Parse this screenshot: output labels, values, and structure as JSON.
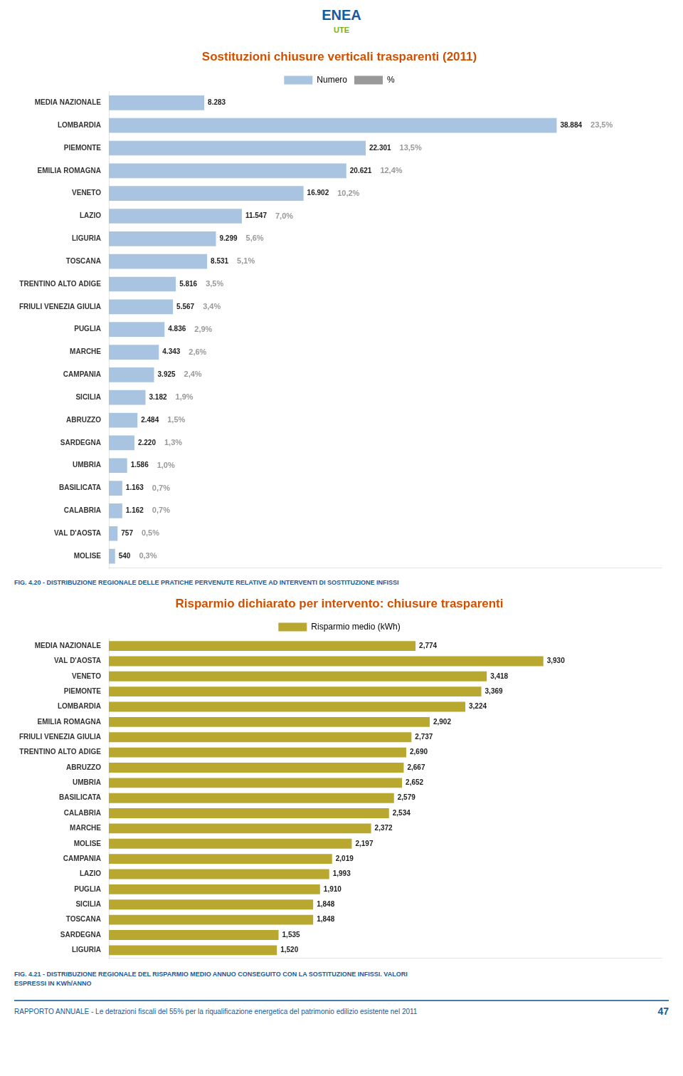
{
  "chart_data": [
    {
      "type": "bar",
      "orientation": "horizontal",
      "title": "Sostituzioni chiusure verticali trasparenti (2011)",
      "categories": [
        "MEDIA NAZIONALE",
        "LOMBARDIA",
        "PIEMONTE",
        "EMILIA ROMAGNA",
        "VENETO",
        "LAZIO",
        "LIGURIA",
        "TOSCANA",
        "TRENTINO ALTO ADIGE",
        "FRIULI VENEZIA GIULIA",
        "PUGLIA",
        "MARCHE",
        "CAMPANIA",
        "SICILIA",
        "ABRUZZO",
        "SARDEGNA",
        "UMBRIA",
        "BASILICATA",
        "CALABRIA",
        "VAL D'AOSTA",
        "MOLISE"
      ],
      "series": [
        {
          "name": "Numero",
          "color": "#a8c4e0",
          "values": [
            8283,
            38884,
            22301,
            20621,
            16902,
            11547,
            9299,
            8531,
            5816,
            5567,
            4836,
            4343,
            3925,
            3182,
            2484,
            2220,
            1586,
            1163,
            1162,
            757,
            540
          ],
          "value_labels": [
            "8.283",
            "38.884",
            "22.301",
            "20.621",
            "16.902",
            "11.547",
            "9.299",
            "8.531",
            "5.816",
            "5.567",
            "4.836",
            "4.343",
            "3.925",
            "3.182",
            "2.484",
            "2.220",
            "1.586",
            "1.163",
            "1.162",
            "757",
            "540"
          ]
        },
        {
          "name": "%",
          "type": "label",
          "color": "#999999",
          "values": [
            null,
            23.5,
            13.5,
            12.4,
            10.2,
            7.0,
            5.6,
            5.1,
            3.5,
            3.4,
            2.9,
            2.6,
            2.4,
            1.9,
            1.5,
            1.3,
            1.0,
            0.7,
            0.7,
            0.5,
            0.3
          ],
          "value_labels": [
            null,
            "23,5%",
            "13,5%",
            "12,4%",
            "10,2%",
            "7,0%",
            "5,6%",
            "5,1%",
            "3,5%",
            "3,4%",
            "2,9%",
            "2,6%",
            "2,4%",
            "1,9%",
            "1,5%",
            "1,3%",
            "1,0%",
            "0,7%",
            "0,7%",
            "0,5%",
            "0,3%"
          ]
        }
      ],
      "xlim": [
        0,
        48000
      ],
      "grid": false,
      "legend": "top",
      "data_labels": true,
      "tick_labels": "y",
      "annotations": [
        "ENEA",
        "UTE",
        "FIG. 4.20 - DISTRIBUZIONE REGIONALE DELLE PRATICHE PERVENUTE RELATIVE AD INTERVENTI DI SOSTITUZIONE INFISSI"
      ]
    },
    {
      "type": "bar",
      "orientation": "horizontal",
      "title": "Risparmio dichiarato per intervento: chiusure trasparenti",
      "categories": [
        "MEDIA NAZIONALE",
        "VAL D'AOSTA",
        "VENETO",
        "PIEMONTE",
        "LOMBARDIA",
        "EMILIA ROMAGNA",
        "FRIULI VENEZIA GIULIA",
        "TRENTINO ALTO ADIGE",
        "ABRUZZO",
        "UMBRIA",
        "BASILICATA",
        "CALABRIA",
        "MARCHE",
        "MOLISE",
        "CAMPANIA",
        "LAZIO",
        "PUGLIA",
        "SICILIA",
        "TOSCANA",
        "SARDEGNA",
        "LIGURIA"
      ],
      "series": [
        {
          "name": "Risparmio medio (kWh)",
          "color": "#b8a830",
          "values": [
            2.774,
            3.93,
            3.418,
            3.369,
            3.224,
            2.902,
            2.737,
            2.69,
            2.667,
            2.652,
            2.579,
            2.534,
            2.372,
            2.197,
            2.019,
            1.993,
            1.91,
            1.848,
            1.848,
            1.535,
            1.52
          ],
          "value_labels": [
            "2,774",
            "3,930",
            "3,418",
            "3,369",
            "3,224",
            "2,902",
            "2,737",
            "2,690",
            "2,667",
            "2,652",
            "2,579",
            "2,534",
            "2,372",
            "2,197",
            "2,019",
            "1,993",
            "1,910",
            "1,848",
            "1,848",
            "1,535",
            "1,520"
          ]
        }
      ],
      "xlim": [
        0,
        5.0
      ],
      "grid": false,
      "legend": "top",
      "data_labels": true,
      "tick_labels": "y",
      "annotations": [
        "FIG. 4.21 - DISTRIBUZIONE REGIONALE DEL RISPARMIO MEDIO ANNUO CONSEGUITO CON LA SOSTITUZIONE INFISSI.  VALORI",
        "ESPRESSI IN KWh/ANNO",
        "RAPPORTO ANNUALE - Le detrazioni fiscali del 55% per la riqualificazione energetica del patrimonio edilizio esistente nel 2011",
        "47"
      ]
    }
  ]
}
